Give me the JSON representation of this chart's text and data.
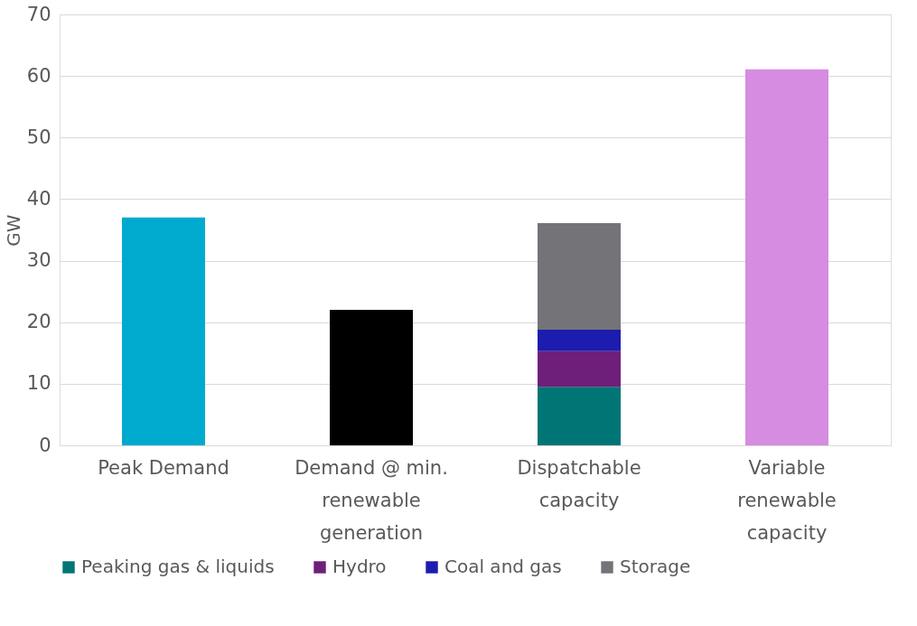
{
  "chart_data": {
    "type": "bar",
    "stacked": true,
    "ylabel": "GW",
    "categories": [
      "Peak Demand",
      "Demand @ min. renewable generation",
      "Dispatchable capacity",
      "Variable renewable capacity"
    ],
    "series": [
      {
        "color": "#00aacf",
        "values": [
          37,
          null,
          null,
          null
        ]
      },
      {
        "color": "#000000",
        "values": [
          null,
          22,
          null,
          null
        ]
      },
      {
        "name": "Peaking gas & liquids",
        "color": "#007575",
        "values": [
          null,
          null,
          9.5,
          null
        ]
      },
      {
        "name": "Hydro",
        "color": "#6e1f7a",
        "values": [
          null,
          null,
          5.8,
          null
        ]
      },
      {
        "name": "Coal and gas",
        "color": "#1c1caf",
        "values": [
          null,
          null,
          3.5,
          null
        ]
      },
      {
        "name": "Storage",
        "color": "#747378",
        "values": [
          null,
          null,
          17.3,
          null
        ]
      },
      {
        "color": "#d68ce0",
        "values": [
          null,
          null,
          null,
          61.1
        ]
      }
    ],
    "ylim": [
      0,
      70
    ],
    "yticks": [
      0,
      10,
      20,
      30,
      40,
      50,
      60,
      70
    ],
    "grid": "y",
    "legend": "bottom"
  }
}
